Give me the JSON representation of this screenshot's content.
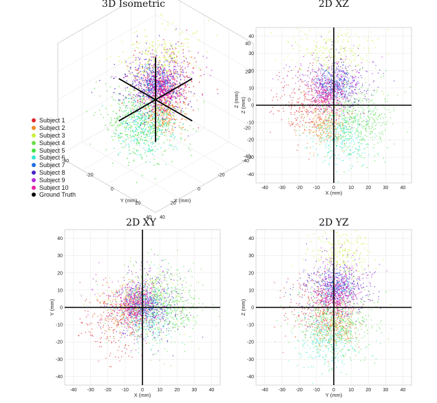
{
  "chart_data": [
    {
      "type": "scatter",
      "title": "3D Isometric",
      "xlabel": "X (mm)",
      "ylabel": "Y (mm)",
      "zlabel": "Z (mm)",
      "xlim": [
        -40,
        40
      ],
      "ylim": [
        -40,
        40
      ],
      "zlim": [
        -40,
        40
      ],
      "x_ticks": [
        "-40",
        "-20",
        "0",
        "20",
        "40"
      ],
      "y_ticks": [
        "-40",
        "-20",
        "0",
        "20",
        "40"
      ],
      "z_ticks": [
        "-40",
        "-20",
        "0",
        "20",
        "40"
      ],
      "grid": true
    },
    {
      "type": "scatter",
      "title": "2D XZ",
      "xlabel": "X (mm)",
      "ylabel": "Z (mm)",
      "xlim": [
        -45,
        45
      ],
      "ylim": [
        -45,
        45
      ],
      "x_ticks": [
        "-40",
        "-30",
        "-20",
        "-10",
        "0",
        "10",
        "20",
        "30",
        "40"
      ],
      "y_ticks": [
        "-40",
        "-30",
        "-20",
        "-10",
        "0",
        "10",
        "20",
        "30",
        "40"
      ],
      "grid": true
    },
    {
      "type": "scatter",
      "title": "2D XY",
      "xlabel": "X (mm)",
      "ylabel": "Y (mm)",
      "xlim": [
        -45,
        45
      ],
      "ylim": [
        -45,
        45
      ],
      "x_ticks": [
        "-40",
        "-30",
        "-20",
        "-10",
        "0",
        "10",
        "20",
        "30",
        "40"
      ],
      "y_ticks": [
        "-40",
        "-30",
        "-20",
        "-10",
        "0",
        "10",
        "20",
        "30",
        "40"
      ],
      "grid": true
    },
    {
      "type": "scatter",
      "title": "2D YZ",
      "xlabel": "Y (mm)",
      "ylabel": "Z (mm)",
      "xlim": [
        -45,
        45
      ],
      "ylim": [
        -45,
        45
      ],
      "x_ticks": [
        "-40",
        "-30",
        "-20",
        "-10",
        "0",
        "10",
        "20",
        "30",
        "40"
      ],
      "y_ticks": [
        "-40",
        "-30",
        "-20",
        "-10",
        "0",
        "10",
        "20",
        "30",
        "40"
      ],
      "grid": true
    }
  ],
  "series": [
    {
      "name": "Subject 1",
      "color": "#e3262b",
      "center": [
        -15,
        -8,
        0
      ],
      "spread": [
        10,
        10,
        9
      ]
    },
    {
      "name": "Subject 2",
      "color": "#f08a24",
      "center": [
        -6,
        2,
        -12
      ],
      "spread": [
        7,
        6,
        6
      ]
    },
    {
      "name": "Subject 3",
      "color": "#c8f03a",
      "center": [
        0,
        4,
        30
      ],
      "spread": [
        12,
        9,
        8
      ]
    },
    {
      "name": "Subject 4",
      "color": "#6cdc4c",
      "center": [
        10,
        -2,
        -8
      ],
      "spread": [
        12,
        12,
        10
      ]
    },
    {
      "name": "Subject 5",
      "color": "#44e044",
      "center": [
        14,
        3,
        -10
      ],
      "spread": [
        10,
        11,
        11
      ]
    },
    {
      "name": "Subject 6",
      "color": "#33e8d5",
      "center": [
        4,
        -4,
        -20
      ],
      "spread": [
        8,
        8,
        8
      ]
    },
    {
      "name": "Subject 7",
      "color": "#1c6fe0",
      "center": [
        0,
        2,
        12
      ],
      "spread": [
        5,
        5,
        5
      ]
    },
    {
      "name": "Subject 8",
      "color": "#4a22c8",
      "center": [
        3,
        0,
        10
      ],
      "spread": [
        10,
        10,
        9
      ]
    },
    {
      "name": "Subject 9",
      "color": "#b22ad8",
      "center": [
        -2,
        3,
        14
      ],
      "spread": [
        11,
        10,
        8
      ]
    },
    {
      "name": "Subject 10",
      "color": "#ec1fa6",
      "center": [
        -4,
        2,
        6
      ],
      "spread": [
        5,
        5,
        5
      ]
    },
    {
      "name": "Ground Truth",
      "color": "#000000"
    }
  ]
}
